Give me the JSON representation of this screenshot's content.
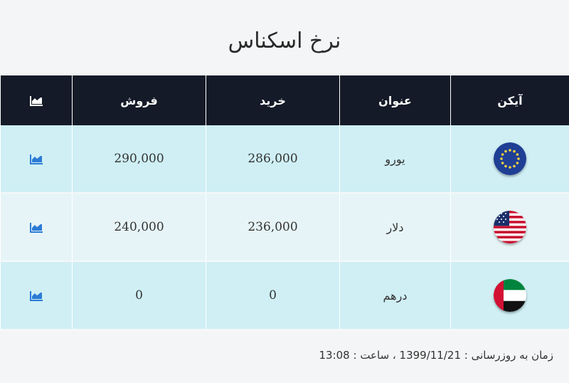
{
  "title": "نرخ اسکناس",
  "table": {
    "headers": {
      "icon": "آیکن",
      "name": "عنوان",
      "buy": "خرید",
      "sell": "فروش",
      "chart_icon": "chart-icon"
    },
    "rows": [
      {
        "flag_icon": "eu-flag-icon",
        "name": "یورو",
        "buy": "286,000",
        "sell": "290,000",
        "chart_icon": "chart-icon"
      },
      {
        "flag_icon": "us-flag-icon",
        "name": "دلار",
        "buy": "236,000",
        "sell": "240,000",
        "chart_icon": "chart-icon"
      },
      {
        "flag_icon": "uae-flag-icon",
        "name": "درهم",
        "buy": "0",
        "sell": "0",
        "chart_icon": "chart-icon"
      }
    ]
  },
  "footer": {
    "updated_text": "زمان به روزرسانی : 1399/11/21 ، ساعت : 13:08"
  },
  "colors": {
    "header_bg": "#141a28",
    "row_odd_bg": "#cfeff5",
    "row_even_bg": "#e6f4f7",
    "chart_icon": "#2c7bd6"
  }
}
